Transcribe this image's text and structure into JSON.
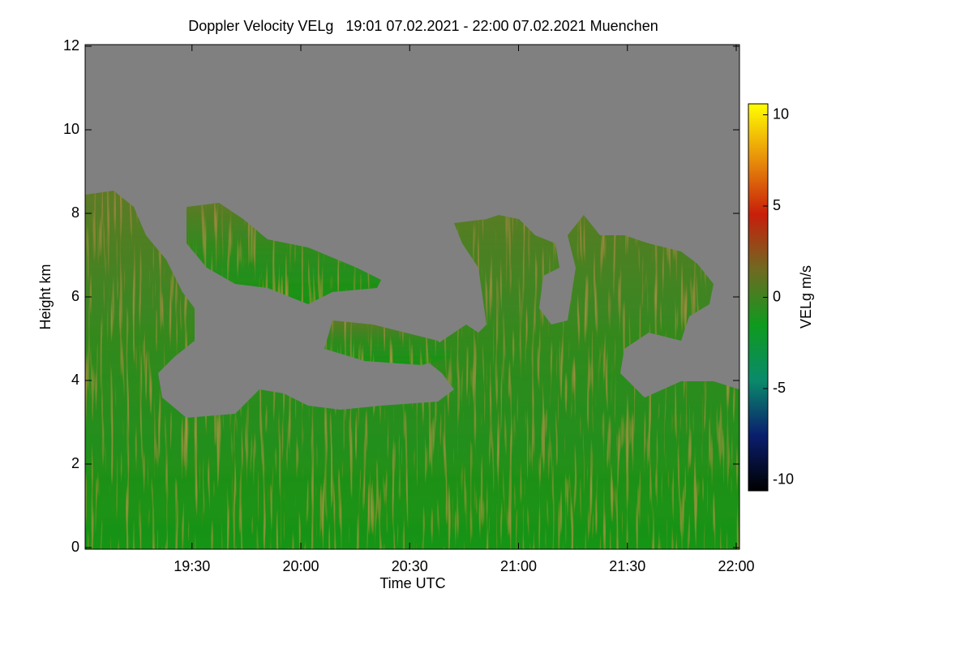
{
  "chart_data": {
    "type": "heatmap",
    "title": "Doppler Velocity VELg   19:01 07.02.2021 - 22:00 07.02.2021 Muenchen",
    "x_label": "Time UTC",
    "y_label": "Height km",
    "colorbar_label": "VELg m/s",
    "xlim": [
      1141,
      1320
    ],
    "xticks": [
      {
        "value": 1170,
        "label": "19:30"
      },
      {
        "value": 1200,
        "label": "20:00"
      },
      {
        "value": 1230,
        "label": "20:30"
      },
      {
        "value": 1260,
        "label": "21:00"
      },
      {
        "value": 1290,
        "label": "21:30"
      },
      {
        "value": 1320,
        "label": "22:00"
      }
    ],
    "ylim": [
      0,
      12
    ],
    "yticks": [
      0,
      2,
      4,
      6,
      8,
      10,
      12
    ],
    "clim": [
      -10.6,
      10.6
    ],
    "cticks": [
      -10,
      -5,
      0,
      5,
      10
    ],
    "colormap": [
      "#000000",
      "#0a1e6e",
      "#0a8a6a",
      "#0f9a1e",
      "#6f6a22",
      "#c81e0a",
      "#e8900a",
      "#ffff00"
    ],
    "background_color": "#808080"
  }
}
